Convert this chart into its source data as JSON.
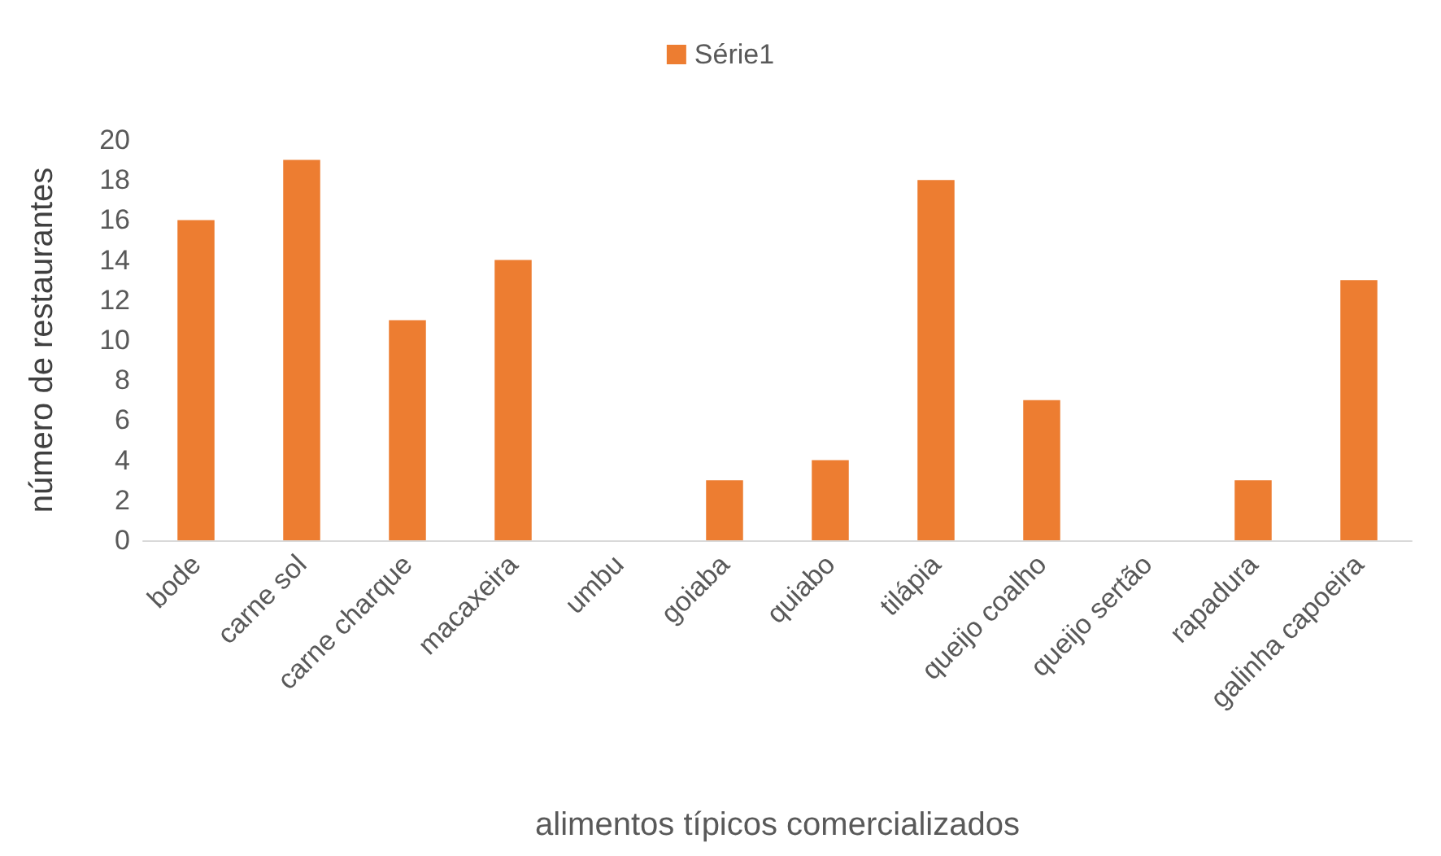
{
  "chart_data": {
    "type": "bar",
    "xlabel": "alimentos típicos comercializados",
    "ylabel": "número de restaurantes",
    "categories": [
      "bode",
      "carne sol",
      "carne charque",
      "macaxeira",
      "umbu",
      "goiaba",
      "quiabo",
      "tilápia",
      "queijo coalho",
      "queijo sertão",
      "rapadura",
      "galinha capoeira"
    ],
    "series": [
      {
        "name": "Série1",
        "color": "#ed7d31",
        "values": [
          16,
          19,
          11,
          14,
          0,
          3,
          4,
          18,
          7,
          0,
          3,
          13
        ]
      }
    ],
    "ylim": [
      0,
      20
    ],
    "yticks": [
      0,
      2,
      4,
      6,
      8,
      10,
      12,
      14,
      16,
      18,
      20
    ],
    "grid": false,
    "legend": "top"
  }
}
